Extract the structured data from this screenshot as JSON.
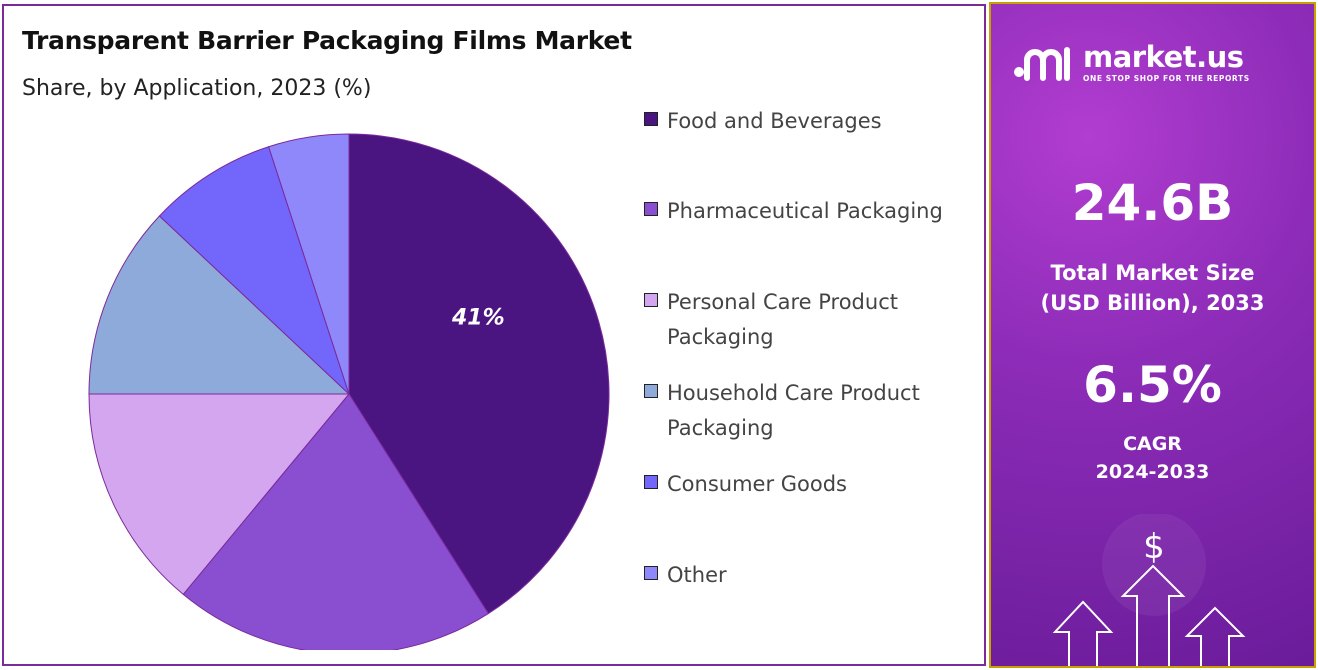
{
  "chart_data": {
    "type": "pie",
    "title": "Transparent Barrier Packaging Films Market",
    "subtitle": "Share, by Application, 2023 (%)",
    "slices": [
      {
        "label": "Food and Beverages",
        "value": 41,
        "color": "#4b1581",
        "data_label": "41%"
      },
      {
        "label": "Pharmaceutical Packaging",
        "value": 20,
        "color": "#8a4fd1",
        "data_label": ""
      },
      {
        "label": "Personal Care Product Packaging",
        "value": 14,
        "color": "#d4a6ef",
        "data_label": ""
      },
      {
        "label": "Household Care Product Packaging",
        "value": 12,
        "color": "#8eaadb",
        "data_label": ""
      },
      {
        "label": "Consumer Goods",
        "value": 8,
        "color": "#7366fb",
        "data_label": ""
      },
      {
        "label": "Other",
        "value": 5,
        "color": "#8f88fb",
        "data_label": ""
      }
    ],
    "legend_position": "right"
  },
  "brand": {
    "name": "market.us",
    "tagline": "ONE STOP SHOP FOR THE REPORTS"
  },
  "stats": {
    "market_size_value": "24.6B",
    "market_size_label_line1": "Total Market Size",
    "market_size_label_line2": "(USD Billion), 2033",
    "cagr_value": "6.5%",
    "cagr_label_line1": "CAGR",
    "cagr_label_line2": "2024-2033",
    "currency_symbol": "$"
  }
}
